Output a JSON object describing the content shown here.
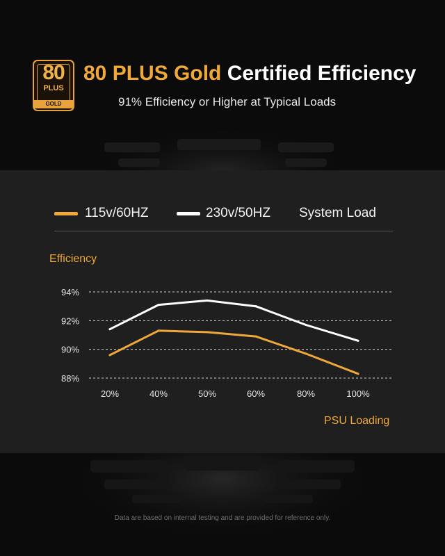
{
  "header": {
    "badge": {
      "number": "80",
      "plus": "PLUS",
      "grade": "GOLD"
    },
    "title_gold": "80 PLUS Gold",
    "title_white": "Certified Efficiency",
    "subtitle": "91% Efficiency or Higher at Typical Loads"
  },
  "legend": {
    "items": [
      {
        "label": "115v/60HZ",
        "color": "#f0a83b"
      },
      {
        "label": "230v/50HZ",
        "color": "#ffffff"
      },
      {
        "label": "System Load"
      }
    ]
  },
  "chart_data": {
    "type": "line",
    "ylabel": "Efficiency",
    "xlabel": "PSU Loading",
    "categories": [
      "20%",
      "40%",
      "50%",
      "60%",
      "80%",
      "100%"
    ],
    "y_ticks": [
      "88%",
      "90%",
      "92%",
      "94%"
    ],
    "ylim": [
      88,
      94
    ],
    "grid": true,
    "legend_position": "top",
    "series": [
      {
        "name": "115v/60HZ",
        "color": "#f0a83b",
        "values": [
          89.6,
          91.3,
          91.2,
          90.9,
          89.7,
          88.3
        ]
      },
      {
        "name": "230v/50HZ",
        "color": "#ffffff",
        "values": [
          91.4,
          93.1,
          93.4,
          93.0,
          91.7,
          90.6
        ]
      }
    ]
  },
  "footnote": "Data are based on internal testing and are provided for reference only."
}
